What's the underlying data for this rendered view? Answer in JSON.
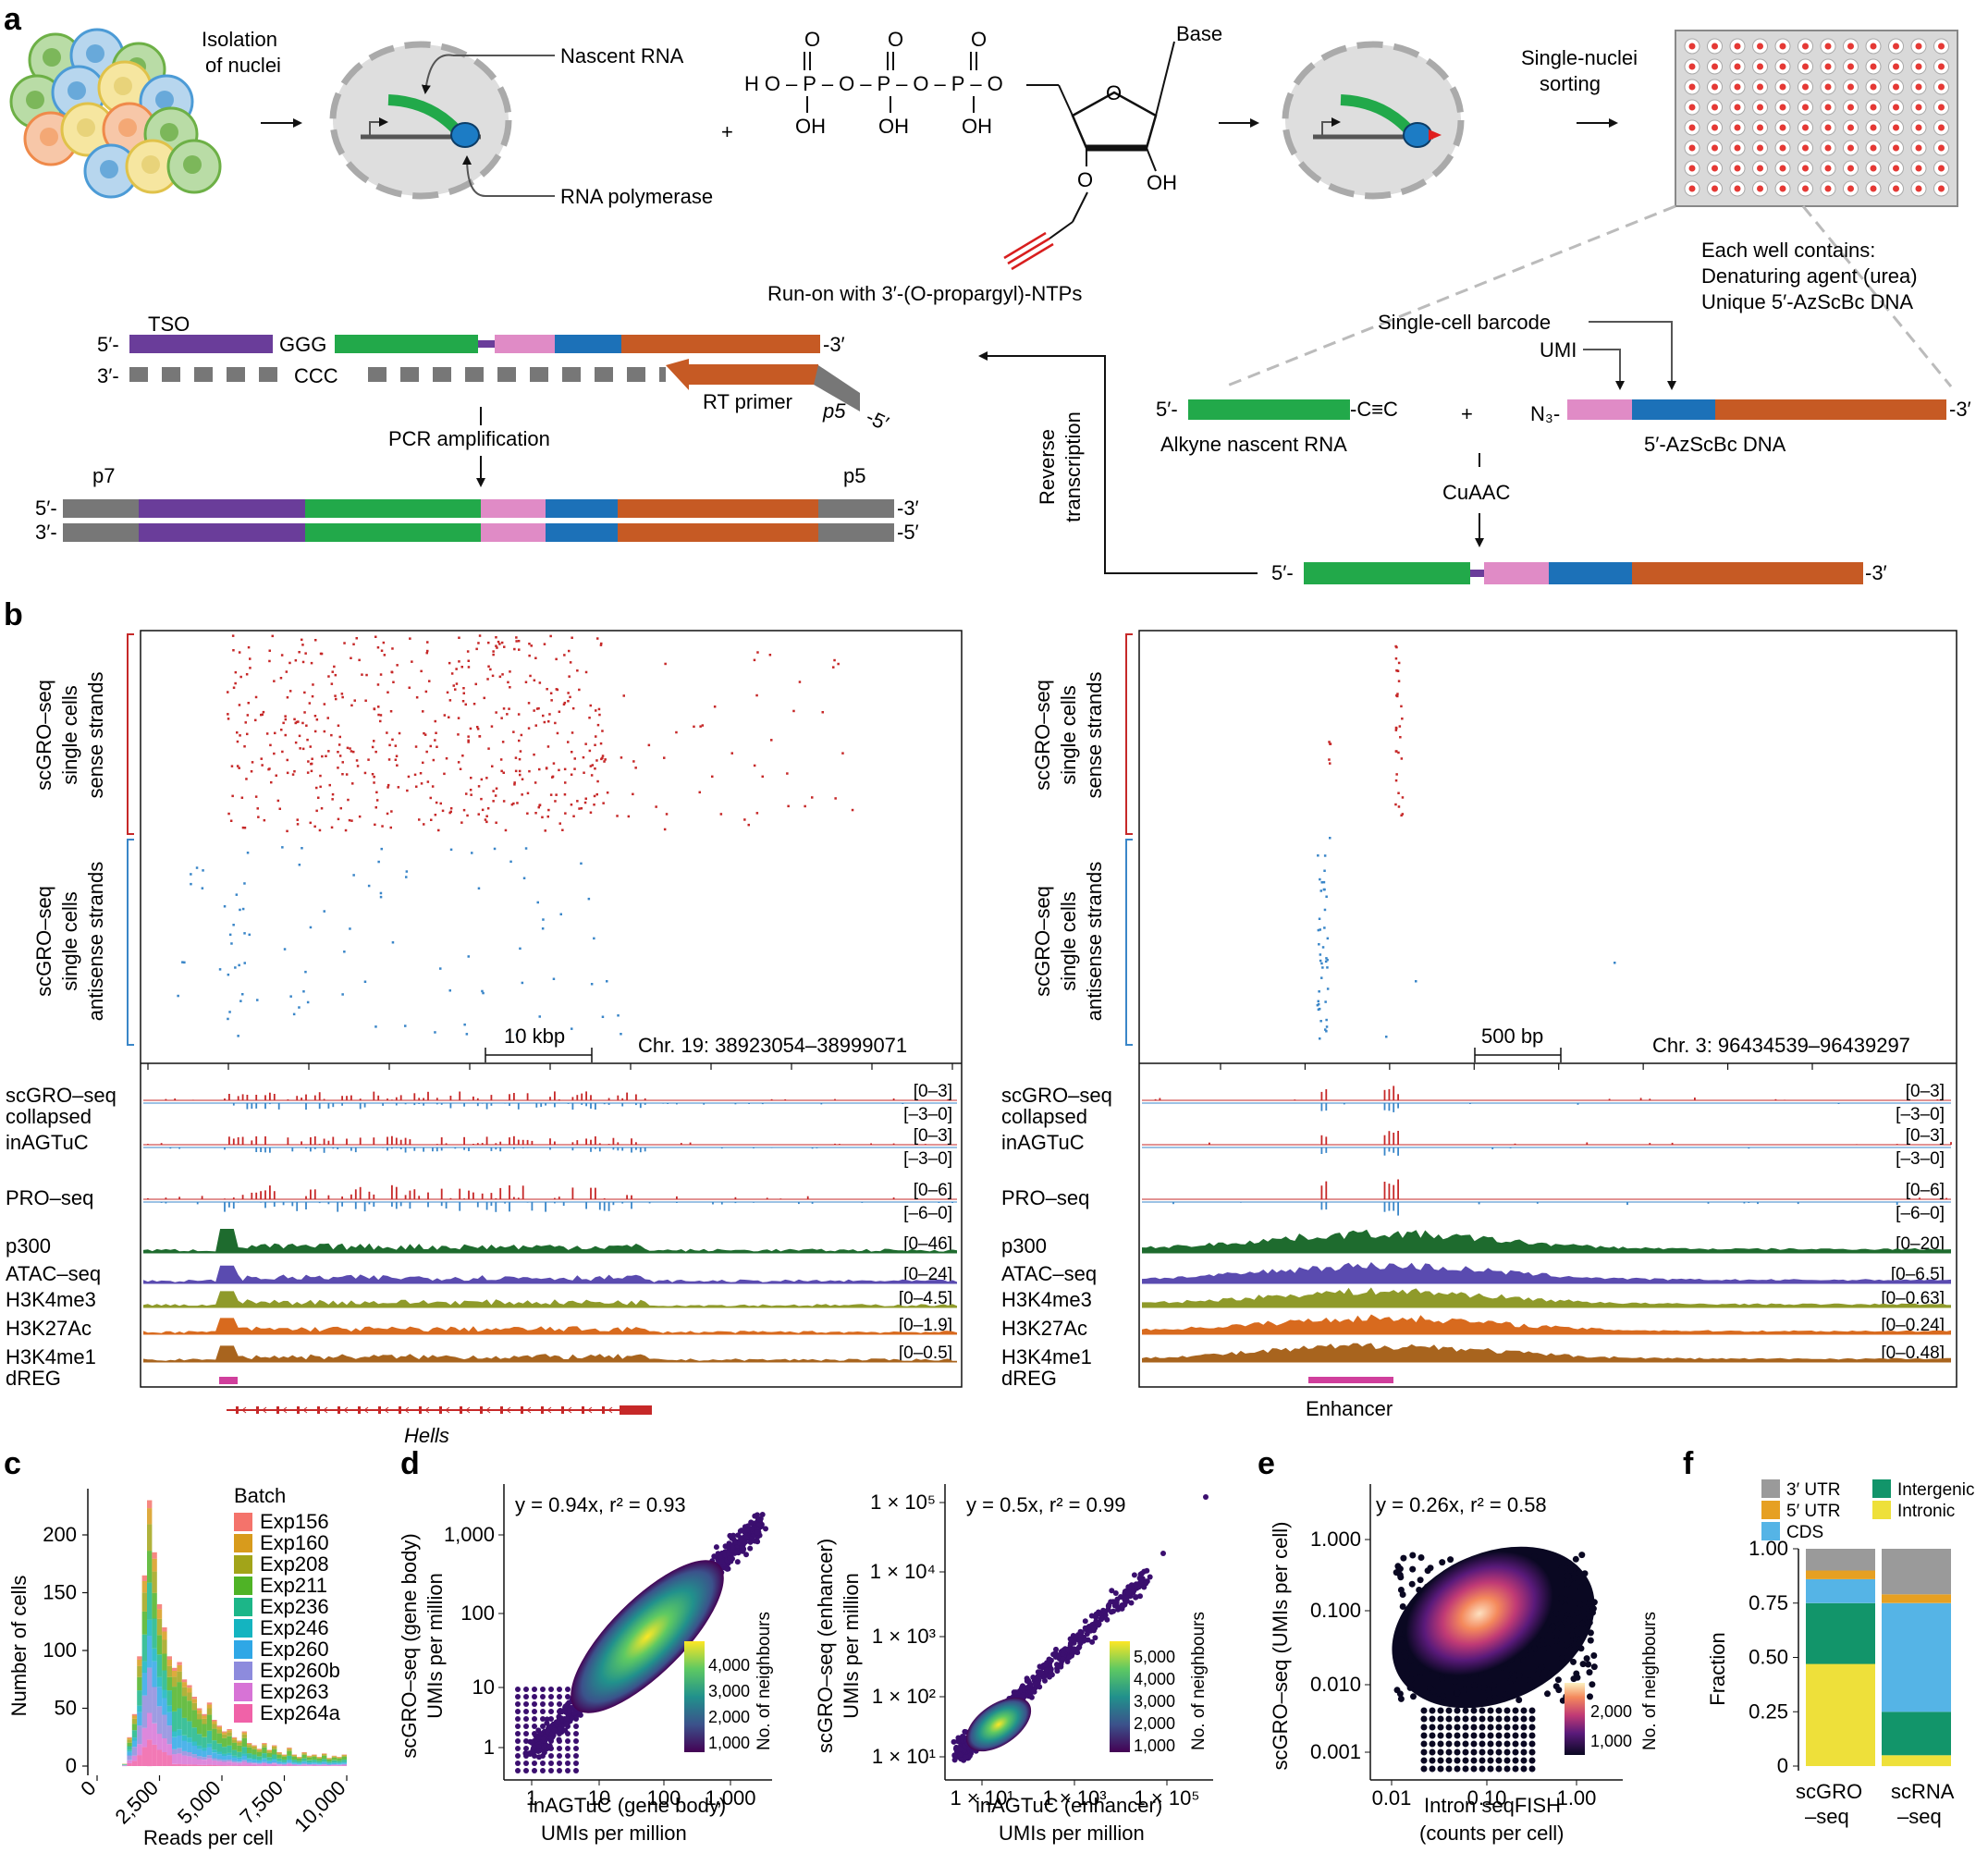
{
  "panels": {
    "a": "a",
    "b": "b",
    "c": "c",
    "d": "d",
    "e": "e",
    "f": "f"
  },
  "panel_a": {
    "isolation": [
      "Isolation",
      "of nuclei"
    ],
    "nascent_rna": "Nascent RNA",
    "rna_polymerase": "RNA polymerase",
    "phosphate_row": "HO–P–O–P–O–P–O",
    "oxygens": [
      "O",
      "O",
      "O"
    ],
    "hydroxyls": [
      "OH",
      "OH",
      "OH"
    ],
    "base": "Base",
    "sugar_o": "O",
    "oh_2": "OH",
    "o_3": "O",
    "plus": "+",
    "runon": "Run-on with 3′-(O-propargyl)-NTPs",
    "sorting": [
      "Single-nuclei",
      "sorting"
    ],
    "well_contents": [
      "Each well contains:",
      "Denaturing agent (urea)",
      "Unique 5′-AzScBc DNA"
    ],
    "single_cell_barcode": "Single-cell barcode",
    "umi": "UMI",
    "five_prime": "5′-",
    "three_prime": "-3′",
    "alkyne_cec": "-C≡C",
    "alkyne_label": "Alkyne nascent RNA",
    "n3": "N₃-",
    "azscbc_label": "5′-AzScBc DNA",
    "cuaac": "CuAAC",
    "reverse_transcription": [
      "Reverse",
      "transcription"
    ],
    "tso": "TSO",
    "ggg": "GGG",
    "ccc": "CCC",
    "three_prime_dash": "3′-",
    "five_prime_end": "-5′",
    "rt_primer": "RT primer",
    "p5": "p5",
    "p7": "p7",
    "pcr": "PCR amplification"
  },
  "panel_b": {
    "sense_label": [
      "scGRO–seq",
      "single cells",
      "sense strands"
    ],
    "antisense_label": [
      "scGRO–seq",
      "single cells",
      "antisense strands"
    ],
    "left": {
      "scale": "10 kbp",
      "coords": "Chr. 19: 38923054–38999071",
      "gene": "Hells",
      "tracks": [
        "scGRO–seq",
        "collapsed",
        "inAGTuC",
        "PRO–seq",
        "p300",
        "ATAC–seq",
        "H3K4me3",
        "H3K27Ac",
        "H3K4me1",
        "dREG"
      ],
      "ranges": [
        "[0–3]",
        "[–3–0]",
        "[0–3]",
        "[–3–0]",
        "[0–6]",
        "[–6–0]",
        "[0–46]",
        "[0–24]",
        "[0–4.5]",
        "[0–1.9]",
        "[0–0.5]"
      ]
    },
    "right": {
      "scale": "500 bp",
      "coords": "Chr. 3: 96434539–96439297",
      "feature": "Enhancer",
      "tracks": [
        "scGRO–seq",
        "collapsed",
        "inAGTuC",
        "PRO–seq",
        "p300",
        "ATAC–seq",
        "H3K4me3",
        "H3K27Ac",
        "H3K4me1",
        "dREG"
      ],
      "ranges": [
        "[0–3]",
        "[–3–0]",
        "[0–3]",
        "[–3–0]",
        "[0–6]",
        "[–6–0]",
        "[0–20]",
        "[0–6.5]",
        "[0–0.63]",
        "[0–0.24]",
        "[0–0.48]"
      ]
    },
    "colors": {
      "sense": "#c62828",
      "antisense": "#3a86c8",
      "p300": "#1e6b2e",
      "atac": "#5a4bb0",
      "h3k4me3": "#8f9a2a",
      "h3k27ac": "#d86a1e",
      "h3k4me1": "#a8641e",
      "dreg": "#d03f9c"
    }
  },
  "chart_data": [
    {
      "panel": "c",
      "type": "bar",
      "stacked": true,
      "xlabel": "Reads per cell",
      "ylabel": "Number of cells",
      "legend_title": "Batch",
      "legend_position": "top-right",
      "xlim": [
        0,
        10000
      ],
      "ylim": [
        0,
        240
      ],
      "xticks": [
        "0",
        "2,500",
        "5,000",
        "7,500",
        "10,000"
      ],
      "yticks": [
        "0",
        "50",
        "100",
        "150",
        "200"
      ],
      "bin_width": 200,
      "series": [
        {
          "name": "Exp156",
          "color": "#f4736b"
        },
        {
          "name": "Exp160",
          "color": "#d89b1c"
        },
        {
          "name": "Exp208",
          "color": "#a2a419"
        },
        {
          "name": "Exp211",
          "color": "#4fb326"
        },
        {
          "name": "Exp236",
          "color": "#1cb688"
        },
        {
          "name": "Exp246",
          "color": "#14b4c0"
        },
        {
          "name": "Exp260",
          "color": "#2fa7e6"
        },
        {
          "name": "Exp260b",
          "color": "#8d8bdd"
        },
        {
          "name": "Exp263",
          "color": "#d773d6"
        },
        {
          "name": "Exp264a",
          "color": "#f062a8"
        }
      ],
      "totals": [
        0,
        0,
        0,
        0,
        0,
        2,
        25,
        45,
        95,
        165,
        230,
        185,
        140,
        120,
        95,
        85,
        90,
        75,
        70,
        60,
        50,
        45,
        55,
        40,
        35,
        30,
        32,
        25,
        22,
        30,
        20,
        18,
        15,
        20,
        14,
        18,
        12,
        10,
        16,
        10,
        8,
        12,
        9,
        10,
        8,
        11,
        7,
        9,
        8,
        10
      ]
    },
    {
      "panel": "d-left",
      "type": "scatter",
      "xscale": "log",
      "yscale": "log",
      "xlabel": [
        "inAGTuC (gene body)",
        "UMIs per million"
      ],
      "ylabel": [
        "scGRO–seq (gene body)",
        "UMIs per million"
      ],
      "annotation": "y = 0.94x, r² = 0.93",
      "xticks": [
        "1",
        "10",
        "100",
        "1,000"
      ],
      "yticks": [
        "1",
        "10",
        "100",
        "1,000"
      ],
      "xlim": [
        0.3,
        3000
      ],
      "ylim": [
        0.3,
        3000
      ],
      "colorbar": {
        "label": "No. of neighbours",
        "ticks": [
          "1,000",
          "2,000",
          "3,000",
          "4,000"
        ],
        "colormap": "viridis"
      },
      "fit": {
        "slope": 0.94,
        "r2": 0.93
      }
    },
    {
      "panel": "d-right",
      "type": "scatter",
      "xscale": "log",
      "yscale": "log",
      "xlabel": [
        "inAGTuC (enhancer)",
        "UMIs per million"
      ],
      "ylabel": [
        "scGRO–seq (enhancer)",
        "UMIs per million"
      ],
      "annotation": "y = 0.5x, r² = 0.99",
      "xticks": [
        "1 × 10¹",
        "1 × 10³",
        "1 × 10⁵"
      ],
      "yticks": [
        "1 × 10¹",
        "1 × 10²",
        "1 × 10³",
        "1 × 10⁴",
        "1 × 10⁵"
      ],
      "colorbar": {
        "label": "No. of neighbours",
        "ticks": [
          "1,000",
          "2,000",
          "3,000",
          "4,000",
          "5,000"
        ],
        "colormap": "viridis"
      },
      "fit": {
        "slope": 0.5,
        "r2": 0.99
      }
    },
    {
      "panel": "e",
      "type": "scatter",
      "xscale": "log",
      "yscale": "log",
      "xlabel": [
        "Intron seqFISH",
        "(counts per cell)"
      ],
      "ylabel": [
        "scGRO–seq (UMIs per cell)"
      ],
      "annotation": "y = 0.26x, r² = 0.58",
      "xticks": [
        "0.01",
        "0.10",
        "1.00"
      ],
      "yticks": [
        "0.001",
        "0.010",
        "0.100",
        "1.000"
      ],
      "colorbar": {
        "label": "No. of neighbours",
        "ticks": [
          "1,000",
          "2,000"
        ],
        "colormap": "magma"
      },
      "fit": {
        "slope": 0.26,
        "r2": 0.58
      }
    },
    {
      "panel": "f",
      "type": "bar",
      "stacked": true,
      "ylabel": "Fraction",
      "ylim": [
        0,
        1
      ],
      "yticks": [
        "0",
        "0.25",
        "0.50",
        "0.75",
        "1.00"
      ],
      "categories": [
        [
          "scGRO",
          "–seq"
        ],
        [
          "scRNA",
          "–seq"
        ]
      ],
      "legend_position": "top",
      "series": [
        {
          "name": "Intronic",
          "color": "#eee03a",
          "values": [
            0.47,
            0.05
          ]
        },
        {
          "name": "Intergenic",
          "color": "#12956a",
          "values": [
            0.28,
            0.2
          ]
        },
        {
          "name": "CDS",
          "color": "#55b4e6",
          "values": [
            0.11,
            0.5
          ]
        },
        {
          "name": "5′ UTR",
          "color": "#e6a022",
          "values": [
            0.04,
            0.04
          ]
        },
        {
          "name": "3′ UTR",
          "color": "#9a9a9a",
          "values": [
            0.1,
            0.21
          ]
        }
      ]
    }
  ]
}
